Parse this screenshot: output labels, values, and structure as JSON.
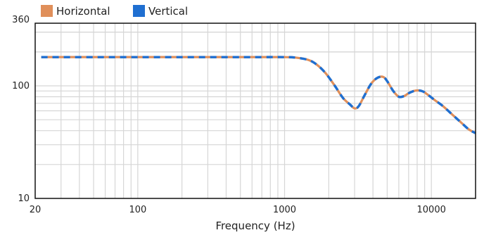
{
  "chart_data": {
    "type": "line",
    "xlabel": "Frequency (Hz)",
    "ylabel": "",
    "x_scale": "log",
    "y_scale": "log",
    "xlim": [
      20,
      20000
    ],
    "ylim": [
      10,
      360
    ],
    "x_ticks": [
      {
        "value": 20,
        "label": "20"
      },
      {
        "value": 100,
        "label": "100"
      },
      {
        "value": 1000,
        "label": "1000"
      },
      {
        "value": 10000,
        "label": "10000"
      }
    ],
    "y_ticks": [
      {
        "value": 10,
        "label": "10"
      },
      {
        "value": 100,
        "label": "100"
      },
      {
        "value": 360,
        "label": "360"
      }
    ],
    "grid": true,
    "legend_position": "top-left",
    "series": [
      {
        "name": "Horizontal",
        "color": "#e08f5a",
        "x": [
          22,
          50,
          100,
          300,
          600,
          1000,
          1200,
          1450,
          1650,
          1900,
          2200,
          2500,
          2800,
          3000,
          3200,
          3500,
          3900,
          4300,
          4700,
          5000,
          5500,
          6000,
          6500,
          7000,
          7600,
          8200,
          8800,
          9500,
          10500,
          12000,
          14000,
          16000,
          18000,
          20000
        ],
        "y": [
          180,
          180,
          180,
          180,
          180,
          180,
          178,
          170,
          155,
          130,
          100,
          78,
          68,
          63,
          66,
          82,
          105,
          118,
          120,
          110,
          90,
          80,
          81,
          86,
          90,
          91,
          89,
          83,
          75,
          66,
          55,
          47,
          41,
          38
        ]
      },
      {
        "name": "Vertical",
        "color": "#1f6fd1",
        "x": [
          22,
          50,
          100,
          300,
          600,
          1000,
          1200,
          1450,
          1650,
          1900,
          2200,
          2500,
          2800,
          3000,
          3200,
          3500,
          3900,
          4300,
          4700,
          5000,
          5500,
          6000,
          6500,
          7000,
          7600,
          8200,
          8800,
          9500,
          10500,
          12000,
          14000,
          16000,
          18000,
          20000
        ],
        "y": [
          180,
          180,
          180,
          180,
          180,
          180,
          178,
          170,
          155,
          130,
          100,
          78,
          68,
          63,
          66,
          82,
          105,
          118,
          120,
          110,
          90,
          80,
          81,
          86,
          90,
          91,
          89,
          83,
          75,
          66,
          55,
          47,
          41,
          38
        ]
      }
    ]
  }
}
